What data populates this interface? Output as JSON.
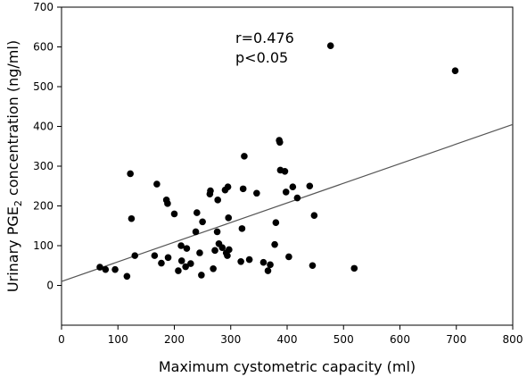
{
  "chart_data": {
    "type": "scatter",
    "xlabel": "Maximum cystometric capacity (ml)",
    "ylabel_parts": {
      "pre": "Urinary PGE",
      "sub": "2",
      "post": " concentration (ng/ml)"
    },
    "xlim": [
      0,
      800
    ],
    "ylim": [
      -100,
      700
    ],
    "x_ticks": [
      "0",
      "100",
      "200",
      "300",
      "400",
      "500",
      "600",
      "700",
      "800"
    ],
    "y_ticks": [
      "0",
      "100",
      "200",
      "300",
      "400",
      "500",
      "600",
      "700"
    ],
    "annotations": {
      "r": "r=0.476",
      "p": "p<0.05"
    },
    "grid": false,
    "regression_line": {
      "x": [
        0,
        800
      ],
      "y": [
        10,
        405
      ]
    },
    "points": [
      {
        "x": 68,
        "y": 46
      },
      {
        "x": 78,
        "y": 40
      },
      {
        "x": 95,
        "y": 40
      },
      {
        "x": 116,
        "y": 23
      },
      {
        "x": 122,
        "y": 281
      },
      {
        "x": 124,
        "y": 168
      },
      {
        "x": 130,
        "y": 75
      },
      {
        "x": 165,
        "y": 75
      },
      {
        "x": 169,
        "y": 255
      },
      {
        "x": 177,
        "y": 56
      },
      {
        "x": 186,
        "y": 215
      },
      {
        "x": 188,
        "y": 206
      },
      {
        "x": 189,
        "y": 70
      },
      {
        "x": 200,
        "y": 180
      },
      {
        "x": 207,
        "y": 37
      },
      {
        "x": 212,
        "y": 100
      },
      {
        "x": 213,
        "y": 62
      },
      {
        "x": 220,
        "y": 47
      },
      {
        "x": 222,
        "y": 93
      },
      {
        "x": 229,
        "y": 55
      },
      {
        "x": 238,
        "y": 135
      },
      {
        "x": 240,
        "y": 183
      },
      {
        "x": 245,
        "y": 82
      },
      {
        "x": 248,
        "y": 26
      },
      {
        "x": 250,
        "y": 160
      },
      {
        "x": 263,
        "y": 230
      },
      {
        "x": 264,
        "y": 238
      },
      {
        "x": 269,
        "y": 42
      },
      {
        "x": 272,
        "y": 88
      },
      {
        "x": 276,
        "y": 135
      },
      {
        "x": 277,
        "y": 215
      },
      {
        "x": 279,
        "y": 105
      },
      {
        "x": 285,
        "y": 95
      },
      {
        "x": 290,
        "y": 240
      },
      {
        "x": 292,
        "y": 82
      },
      {
        "x": 294,
        "y": 75
      },
      {
        "x": 295,
        "y": 248
      },
      {
        "x": 296,
        "y": 170
      },
      {
        "x": 297,
        "y": 90
      },
      {
        "x": 318,
        "y": 60
      },
      {
        "x": 320,
        "y": 143
      },
      {
        "x": 322,
        "y": 243
      },
      {
        "x": 324,
        "y": 325
      },
      {
        "x": 333,
        "y": 65
      },
      {
        "x": 346,
        "y": 232
      },
      {
        "x": 358,
        "y": 58
      },
      {
        "x": 366,
        "y": 37
      },
      {
        "x": 370,
        "y": 52
      },
      {
        "x": 378,
        "y": 103
      },
      {
        "x": 380,
        "y": 158
      },
      {
        "x": 386,
        "y": 365
      },
      {
        "x": 387,
        "y": 360
      },
      {
        "x": 388,
        "y": 290
      },
      {
        "x": 396,
        "y": 287
      },
      {
        "x": 398,
        "y": 235
      },
      {
        "x": 403,
        "y": 72
      },
      {
        "x": 410,
        "y": 248
      },
      {
        "x": 418,
        "y": 220
      },
      {
        "x": 440,
        "y": 250
      },
      {
        "x": 445,
        "y": 50
      },
      {
        "x": 448,
        "y": 176
      },
      {
        "x": 477,
        "y": 603
      },
      {
        "x": 519,
        "y": 43
      },
      {
        "x": 698,
        "y": 540
      }
    ]
  }
}
